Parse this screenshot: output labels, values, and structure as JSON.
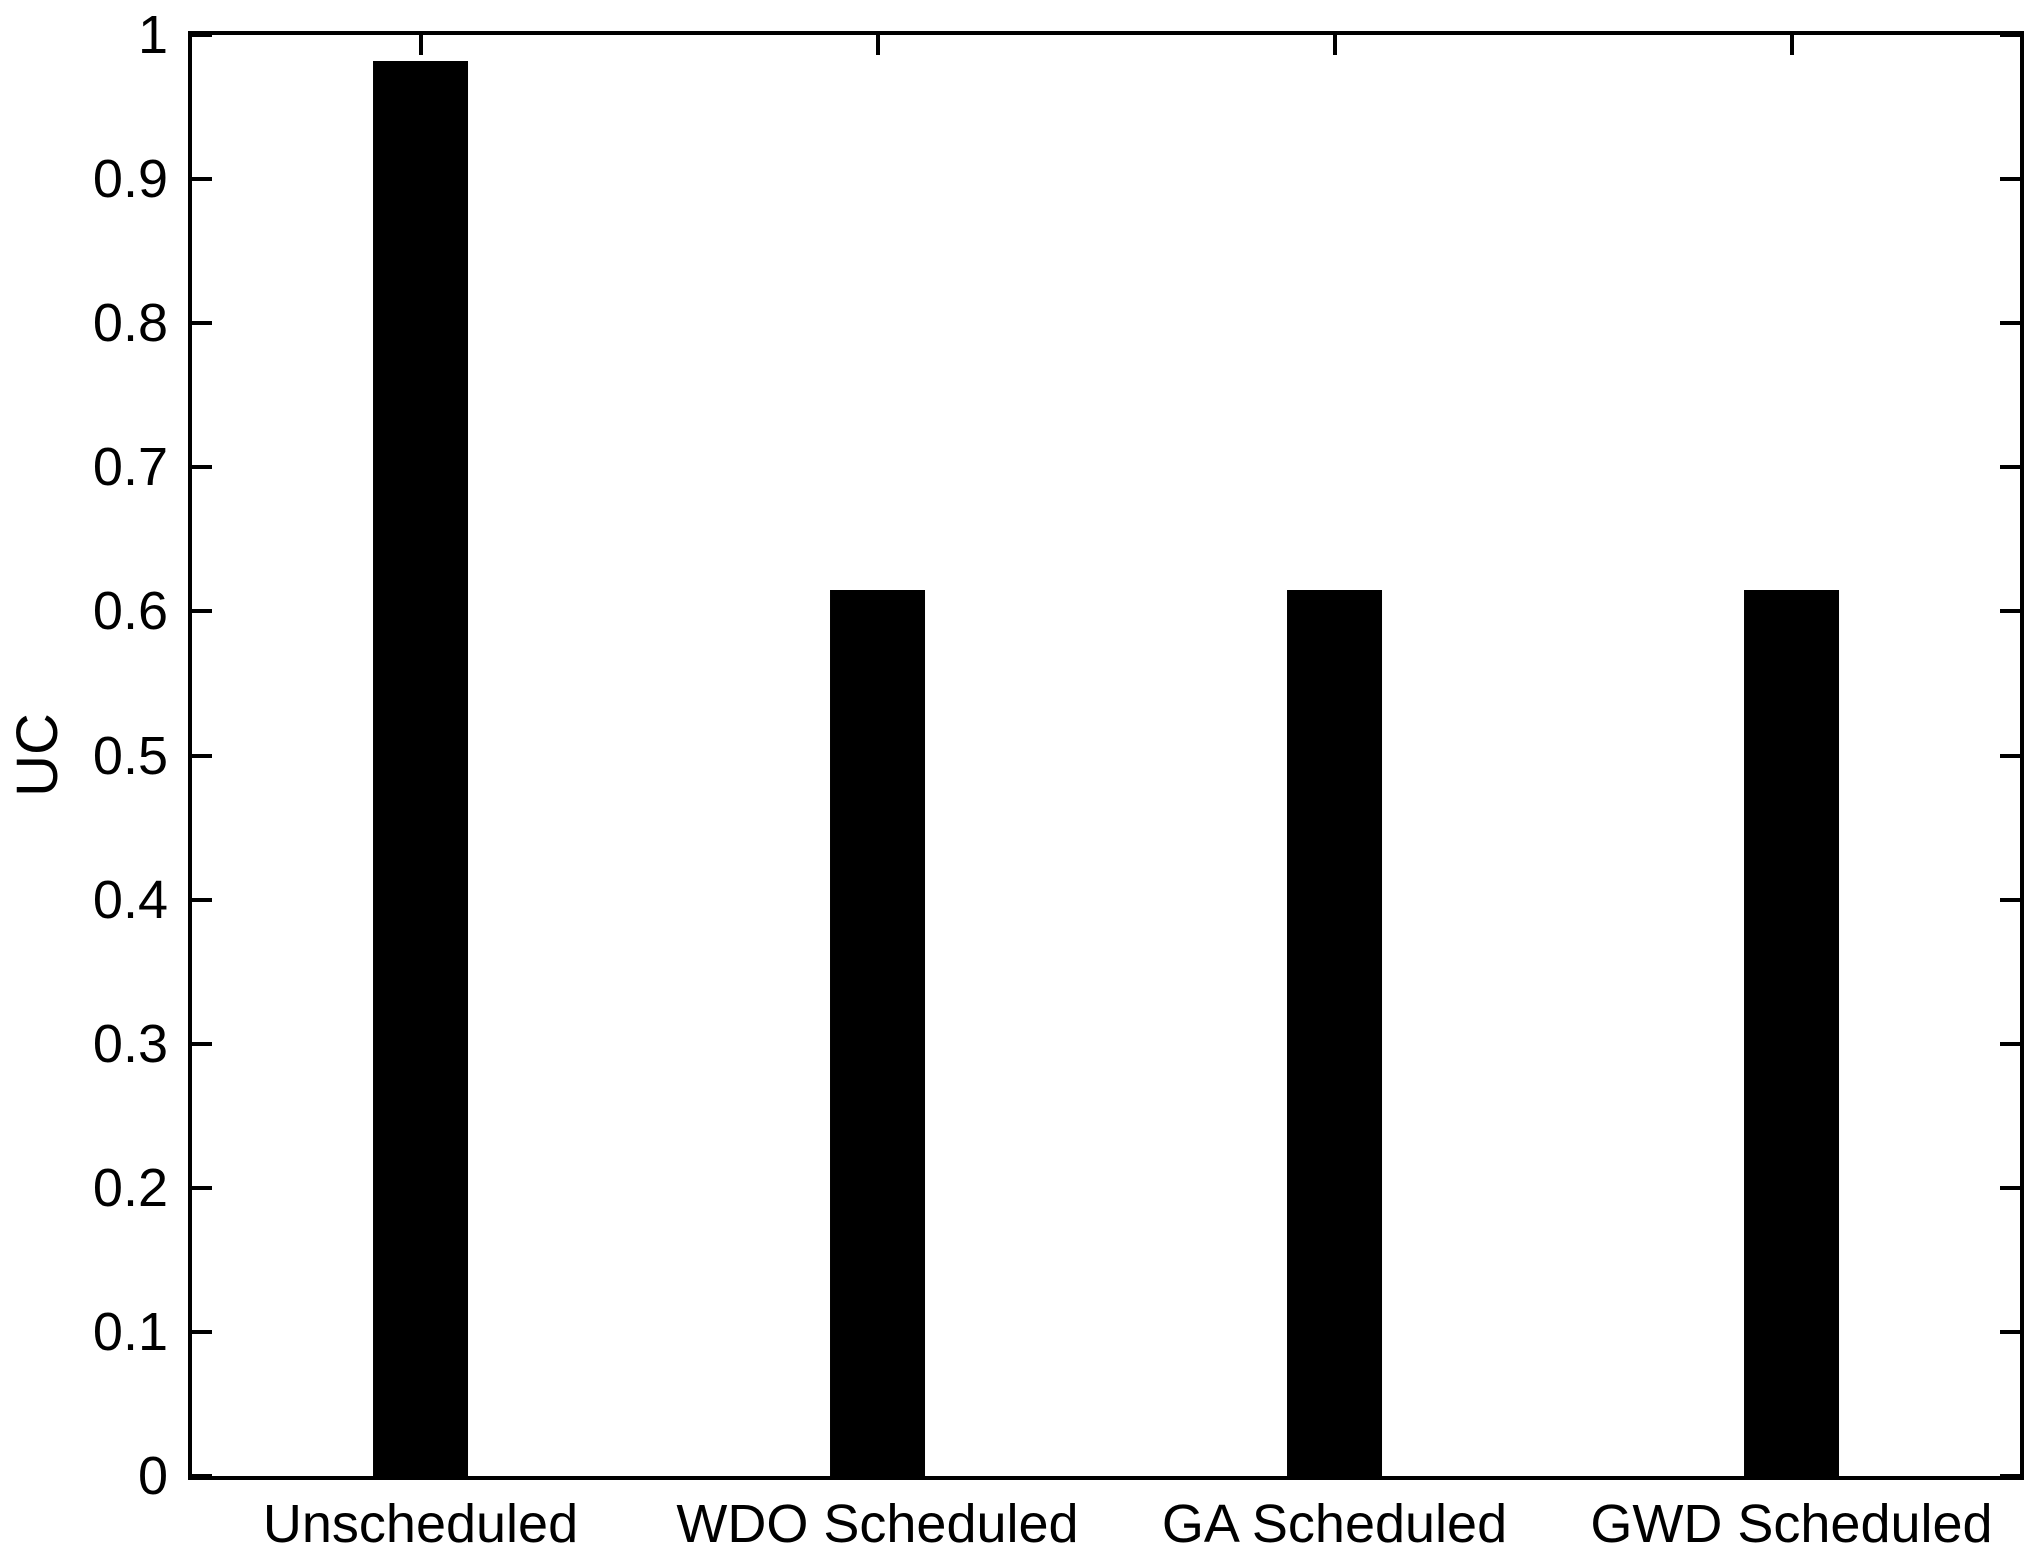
{
  "chart_data": {
    "type": "bar",
    "title": "",
    "xlabel": "",
    "ylabel": "UC",
    "categories": [
      "Unscheduled",
      "WDO Scheduled",
      "GA Scheduled",
      "GWD Scheduled"
    ],
    "values": [
      0.982,
      0.615,
      0.615,
      0.615
    ],
    "ylim": [
      0,
      1
    ],
    "yticks": [
      0,
      0.1,
      0.2,
      0.3,
      0.4,
      0.5,
      0.6,
      0.7,
      0.8,
      0.9,
      1
    ],
    "ytick_labels": [
      "0",
      "0.1",
      "0.2",
      "0.3",
      "0.4",
      "0.5",
      "0.6",
      "0.7",
      "0.8",
      "0.9",
      "1"
    ],
    "grid": false,
    "legend_position": "none",
    "box": true,
    "tick_direction": "in",
    "bar_width_fraction": 0.21,
    "bar_color": "#000000",
    "axis_color": "#000000",
    "background_color": "#ffffff"
  }
}
